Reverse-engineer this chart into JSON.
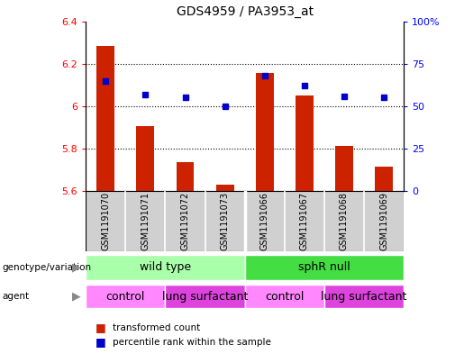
{
  "title": "GDS4959 / PA3953_at",
  "samples": [
    "GSM1191070",
    "GSM1191071",
    "GSM1191072",
    "GSM1191073",
    "GSM1191066",
    "GSM1191067",
    "GSM1191068",
    "GSM1191069"
  ],
  "transformed_counts": [
    6.285,
    5.905,
    5.735,
    5.63,
    6.155,
    6.05,
    5.815,
    5.715
  ],
  "percentile_ranks": [
    65,
    57,
    55,
    50,
    68,
    62,
    56,
    55
  ],
  "bar_bottom": 5.6,
  "ylim": [
    5.6,
    6.4
  ],
  "ylim2": [
    0,
    100
  ],
  "yticks": [
    5.6,
    5.8,
    6.0,
    6.2,
    6.4
  ],
  "yticks2": [
    0,
    25,
    50,
    75,
    100
  ],
  "bar_color": "#cc2200",
  "dot_color": "#0000cc",
  "gray_bg": "#d0d0d0",
  "genotype_groups": [
    {
      "label": "wild type",
      "start": 0,
      "end": 4,
      "color": "#aaffaa"
    },
    {
      "label": "sphR null",
      "start": 4,
      "end": 8,
      "color": "#44dd44"
    }
  ],
  "agent_groups": [
    {
      "label": "control",
      "start": 0,
      "end": 2,
      "color": "#ff88ff"
    },
    {
      "label": "lung surfactant",
      "start": 2,
      "end": 4,
      "color": "#dd44dd"
    },
    {
      "label": "control",
      "start": 4,
      "end": 6,
      "color": "#ff88ff"
    },
    {
      "label": "lung surfactant",
      "start": 6,
      "end": 8,
      "color": "#dd44dd"
    }
  ],
  "legend_items": [
    {
      "label": "transformed count",
      "color": "#cc2200"
    },
    {
      "label": "percentile rank within the sample",
      "color": "#0000cc"
    }
  ],
  "hgrid_levels": [
    5.8,
    6.0,
    6.2
  ]
}
